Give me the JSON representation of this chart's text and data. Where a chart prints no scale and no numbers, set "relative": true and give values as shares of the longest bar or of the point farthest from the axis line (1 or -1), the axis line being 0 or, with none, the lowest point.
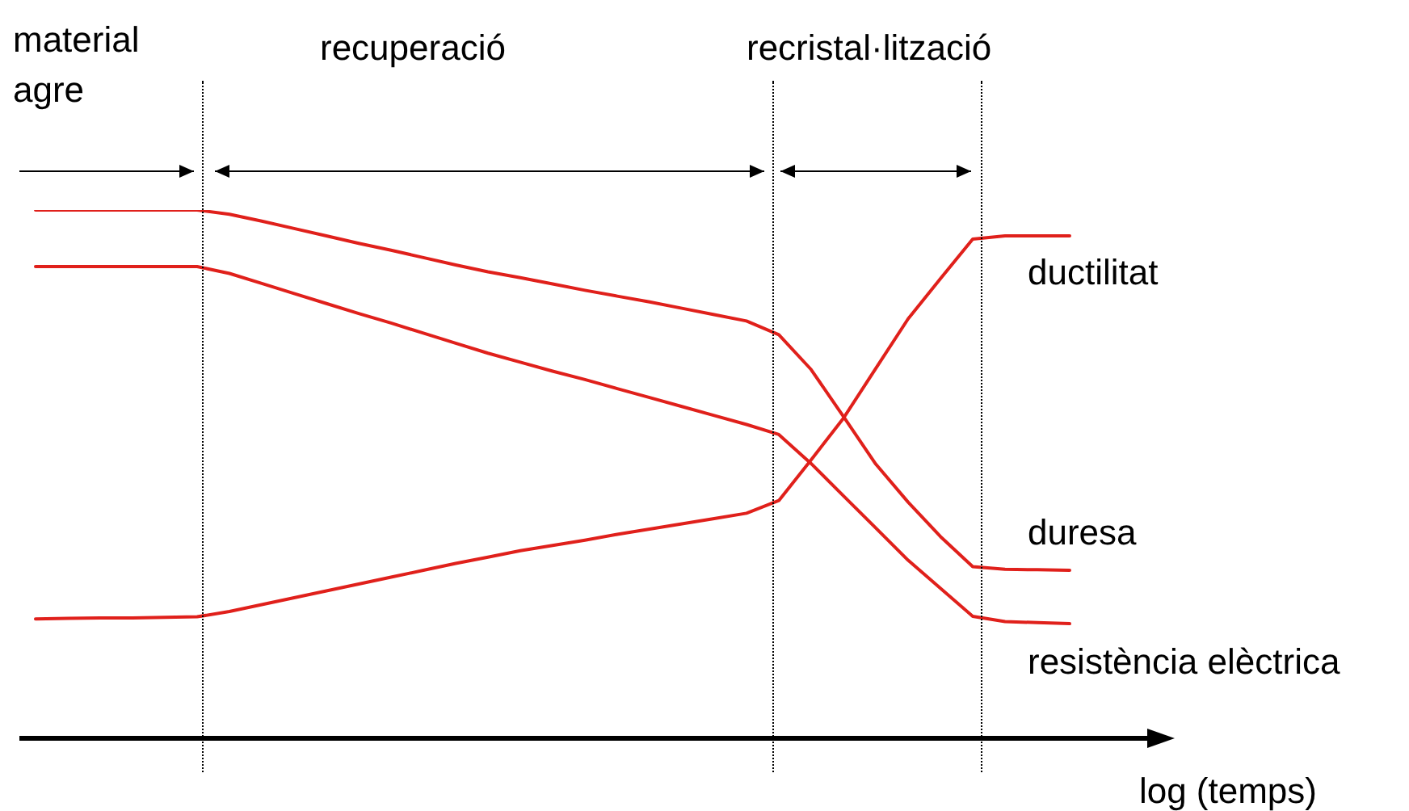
{
  "chart_data": {
    "type": "line",
    "relative": true,
    "xlabel": "log (temps)",
    "legend": false,
    "marker": "none",
    "line_style": "solid",
    "annotations": [
      "material agre",
      "recuperació",
      "recristal·lització"
    ],
    "categories": [
      null,
      null,
      null,
      null,
      null,
      null,
      null,
      null,
      null,
      null,
      null,
      null,
      null,
      null,
      null,
      null,
      null,
      null,
      null,
      null,
      null,
      null,
      null,
      null,
      null,
      null,
      null,
      null,
      null,
      null,
      null,
      null,
      null
    ],
    "series": [
      {
        "name": "ductilitat",
        "color": "#e0201b",
        "values": [
          0.226,
          0.227,
          0.228,
          0.228,
          0.229,
          0.23,
          0.24,
          0.253,
          0.266,
          0.279,
          0.292,
          0.305,
          0.318,
          0.331,
          0.343,
          0.355,
          0.365,
          0.375,
          0.386,
          0.396,
          0.406,
          0.416,
          0.426,
          0.45,
          0.527,
          0.606,
          0.7,
          0.794,
          0.87,
          0.945,
          0.951,
          0.951,
          0.951
        ]
      },
      {
        "name": "duresa",
        "color": "#e0201b",
        "values": [
          1,
          1,
          1,
          1,
          1,
          1,
          0.992,
          0.979,
          0.965,
          0.951,
          0.937,
          0.924,
          0.91,
          0.896,
          0.883,
          0.872,
          0.86,
          0.848,
          0.837,
          0.826,
          0.814,
          0.802,
          0.79,
          0.764,
          0.698,
          0.609,
          0.519,
          0.447,
          0.382,
          0.325,
          0.32,
          0.319,
          0.318
        ]
      },
      {
        "name": "resistència elèctrica",
        "color": "#e0201b",
        "values": [
          0.893,
          0.893,
          0.893,
          0.893,
          0.893,
          0.893,
          0.88,
          0.861,
          0.842,
          0.823,
          0.804,
          0.786,
          0.767,
          0.748,
          0.729,
          0.712,
          0.695,
          0.679,
          0.662,
          0.645,
          0.628,
          0.611,
          0.594,
          0.575,
          0.52,
          0.459,
          0.398,
          0.337,
          0.284,
          0.231,
          0.221,
          0.219,
          0.217
        ]
      }
    ]
  }
}
